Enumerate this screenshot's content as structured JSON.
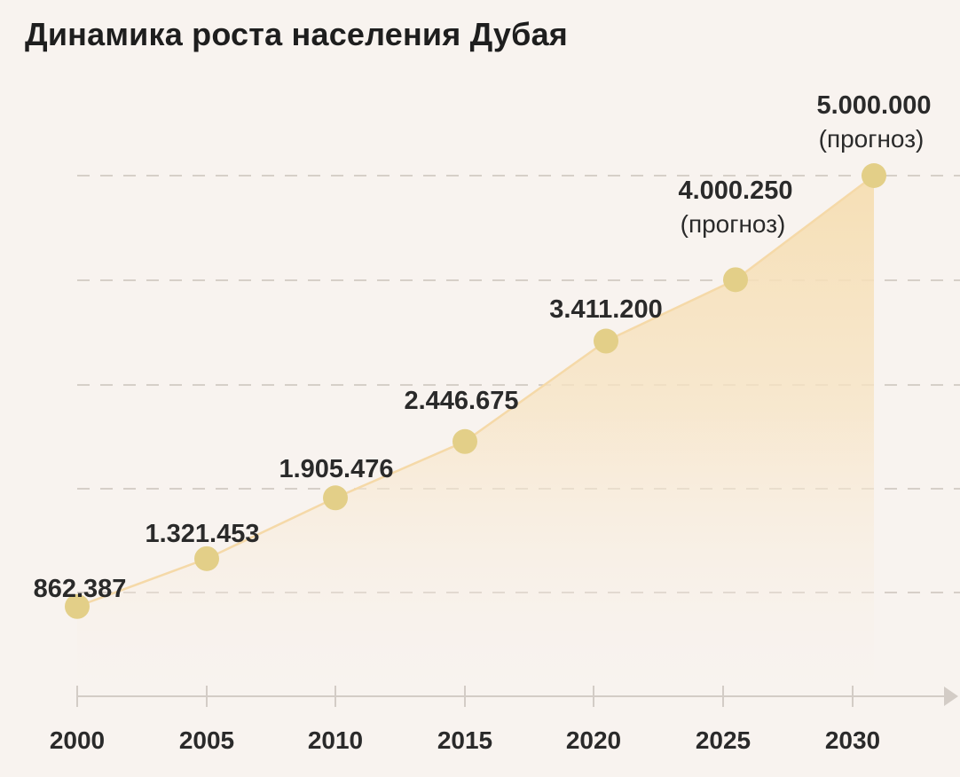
{
  "title": "Динамика роста населения Дубая",
  "colors": {
    "background": "#f8f3ef",
    "marker": "#e3cf88",
    "line": "#f5d9a8",
    "area": "#f6deb2",
    "grid": "#cbc3bc",
    "axis": "#d3ccc6"
  },
  "chart_data": {
    "type": "area",
    "title": "Динамика роста населения Дубая",
    "xlabel": "",
    "ylabel": "",
    "x": [
      2000,
      2005,
      2010,
      2015,
      2020,
      2025,
      2030
    ],
    "tick_labels": [
      "2000",
      "2005",
      "2010",
      "2015",
      "2020",
      "2025",
      "2030"
    ],
    "values": [
      862387,
      1321453,
      1905476,
      2446675,
      3411200,
      4000250,
      5000000
    ],
    "value_labels": [
      "862.387",
      "1.321.453",
      "1.905.476",
      "2.446.675",
      "3.411.200",
      "4.000.250",
      "5.000.000"
    ],
    "annotations": [
      "",
      "",
      "",
      "",
      "",
      "(прогноз)",
      "(прогноз)"
    ],
    "ylim": [
      0,
      5000000
    ],
    "grid": true,
    "legend": "none"
  }
}
